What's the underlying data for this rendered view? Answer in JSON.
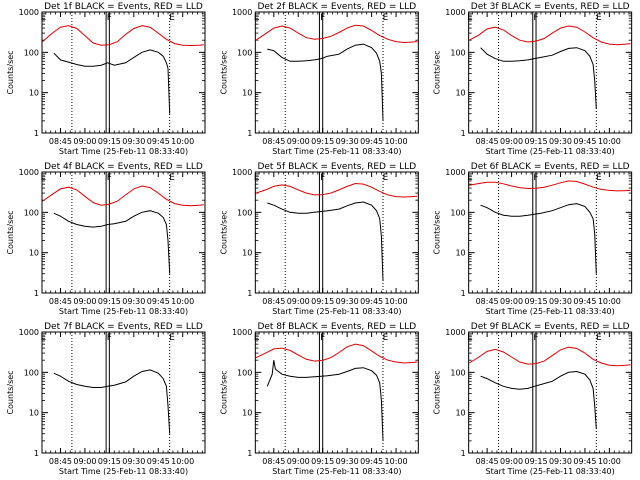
{
  "common": {
    "ylabel": "Counts/sec",
    "xlabel": "Start Time (25-Feb-11 08:33:40)",
    "x_ticks": [
      "08:45",
      "09:00",
      "09:15",
      "09:30",
      "09:45",
      "10:00"
    ],
    "x_tick_minutes": [
      45,
      60,
      75,
      90,
      105,
      120
    ],
    "x_range_minutes": [
      33.67,
      133.67
    ],
    "y_ticks": [
      "1",
      "10",
      "100",
      "1000"
    ],
    "y_tick_values": [
      1,
      10,
      100,
      1000
    ],
    "ylim": [
      1,
      1000
    ],
    "yscale": "log",
    "colors": {
      "events": "#000000",
      "lld": "#e00000",
      "axis": "#000000"
    }
  },
  "chart_data": [
    {
      "title": "Det 1f BLACK = Events, RED = LLD",
      "type": "line",
      "markers": [
        {
          "label": "E",
          "minute": 34.5
        },
        {
          "label": "F",
          "minute": 75
        },
        {
          "label": "E",
          "minute": 113.5
        }
      ],
      "dotted_lines": [
        52,
        112
      ],
      "double_lines": [
        73,
        75
      ],
      "series": [
        {
          "name": "Events",
          "color": "#000000",
          "x": [
            41,
            45,
            55,
            60,
            65,
            70,
            74,
            78,
            85,
            90,
            95,
            100,
            105,
            108,
            110,
            111,
            112
          ],
          "y": [
            95,
            65,
            50,
            45,
            45,
            48,
            55,
            48,
            55,
            75,
            100,
            115,
            100,
            80,
            55,
            40,
            3
          ]
        },
        {
          "name": "LLD",
          "color": "#e00000",
          "x": [
            34,
            40,
            45,
            50,
            55,
            60,
            65,
            70,
            75,
            80,
            85,
            90,
            95,
            100,
            105,
            110,
            115,
            120,
            125,
            130,
            133
          ],
          "y": [
            185,
            300,
            420,
            460,
            390,
            260,
            170,
            150,
            155,
            185,
            280,
            390,
            460,
            420,
            300,
            210,
            165,
            150,
            148,
            150,
            155
          ]
        }
      ]
    },
    {
      "title": "Det 2f BLACK = Events, RED = LLD",
      "type": "line",
      "markers": [
        {
          "label": "E",
          "minute": 34.5
        },
        {
          "label": "F",
          "minute": 75
        },
        {
          "label": "E",
          "minute": 113.5
        }
      ],
      "dotted_lines": [
        52,
        112
      ],
      "double_lines": [
        73,
        75
      ],
      "series": [
        {
          "name": "Events",
          "color": "#000000",
          "x": [
            41,
            45,
            50,
            55,
            60,
            65,
            70,
            74,
            78,
            85,
            90,
            95,
            100,
            105,
            108,
            110,
            111,
            112
          ],
          "y": [
            120,
            110,
            75,
            60,
            60,
            62,
            65,
            70,
            80,
            90,
            120,
            150,
            160,
            130,
            95,
            60,
            30,
            2
          ]
        },
        {
          "name": "LLD",
          "color": "#e00000",
          "x": [
            34,
            40,
            45,
            50,
            55,
            60,
            65,
            70,
            75,
            80,
            85,
            90,
            95,
            100,
            105,
            110,
            115,
            120,
            125,
            130,
            133
          ],
          "y": [
            200,
            290,
            400,
            450,
            400,
            300,
            230,
            210,
            220,
            250,
            310,
            400,
            470,
            450,
            350,
            260,
            210,
            185,
            175,
            180,
            185
          ]
        }
      ]
    },
    {
      "title": "Det 3f BLACK = Events, RED = LLD",
      "type": "line",
      "markers": [
        {
          "label": "E",
          "minute": 34.5
        },
        {
          "label": "F",
          "minute": 75
        },
        {
          "label": "E",
          "minute": 113.5
        }
      ],
      "dotted_lines": [
        52,
        112
      ],
      "double_lines": [
        73,
        75
      ],
      "series": [
        {
          "name": "Events",
          "color": "#000000",
          "x": [
            41,
            45,
            50,
            55,
            60,
            65,
            70,
            74,
            78,
            85,
            90,
            95,
            100,
            105,
            108,
            110,
            111,
            112
          ],
          "y": [
            130,
            90,
            70,
            60,
            60,
            62,
            65,
            70,
            75,
            85,
            105,
            125,
            130,
            110,
            80,
            50,
            20,
            4
          ]
        },
        {
          "name": "LLD",
          "color": "#e00000",
          "x": [
            34,
            40,
            45,
            50,
            55,
            60,
            65,
            70,
            75,
            80,
            85,
            90,
            95,
            100,
            105,
            110,
            115,
            120,
            125,
            130,
            133
          ],
          "y": [
            200,
            270,
            380,
            420,
            360,
            260,
            200,
            180,
            190,
            220,
            300,
            400,
            450,
            420,
            320,
            230,
            180,
            160,
            155,
            160,
            165
          ]
        }
      ]
    },
    {
      "title": "Det 4f BLACK = Events, RED = LLD",
      "type": "line",
      "markers": [
        {
          "label": "E",
          "minute": 34.5
        },
        {
          "label": "F",
          "minute": 75
        },
        {
          "label": "E",
          "minute": 113.5
        }
      ],
      "dotted_lines": [
        52,
        112
      ],
      "double_lines": [
        73,
        75
      ],
      "series": [
        {
          "name": "Events",
          "color": "#000000",
          "x": [
            41,
            45,
            50,
            55,
            60,
            65,
            70,
            74,
            78,
            85,
            90,
            95,
            100,
            105,
            108,
            110,
            111,
            112
          ],
          "y": [
            95,
            80,
            60,
            50,
            45,
            43,
            45,
            50,
            52,
            60,
            80,
            100,
            110,
            95,
            75,
            50,
            20,
            3
          ]
        },
        {
          "name": "LLD",
          "color": "#e00000",
          "x": [
            34,
            40,
            45,
            50,
            55,
            60,
            65,
            70,
            75,
            80,
            85,
            90,
            95,
            100,
            105,
            110,
            115,
            120,
            125,
            130,
            133
          ],
          "y": [
            190,
            280,
            380,
            420,
            360,
            250,
            175,
            150,
            160,
            190,
            270,
            380,
            450,
            410,
            300,
            210,
            165,
            150,
            145,
            150,
            155
          ]
        }
      ]
    },
    {
      "title": "Det 5f BLACK = Events, RED = LLD",
      "type": "line",
      "markers": [
        {
          "label": "E",
          "minute": 34.5
        },
        {
          "label": "F",
          "minute": 75
        },
        {
          "label": "E",
          "minute": 113.5
        }
      ],
      "dotted_lines": [
        52,
        112
      ],
      "double_lines": [
        73,
        75
      ],
      "series": [
        {
          "name": "Events",
          "color": "#000000",
          "x": [
            41,
            45,
            50,
            55,
            60,
            65,
            70,
            74,
            78,
            85,
            90,
            95,
            100,
            105,
            108,
            110,
            111,
            112
          ],
          "y": [
            170,
            150,
            120,
            100,
            95,
            95,
            100,
            105,
            110,
            120,
            145,
            170,
            180,
            150,
            110,
            70,
            25,
            2
          ]
        },
        {
          "name": "LLD",
          "color": "#e00000",
          "x": [
            34,
            40,
            45,
            50,
            55,
            60,
            65,
            70,
            75,
            80,
            85,
            90,
            95,
            100,
            105,
            110,
            115,
            120,
            125,
            130,
            133
          ],
          "y": [
            300,
            360,
            440,
            480,
            440,
            360,
            300,
            270,
            275,
            300,
            360,
            440,
            520,
            500,
            420,
            330,
            270,
            245,
            240,
            245,
            250
          ]
        }
      ]
    },
    {
      "title": "Det 6f BLACK = Events, RED = LLD",
      "type": "line",
      "markers": [
        {
          "label": "E",
          "minute": 34.5
        },
        {
          "label": "F",
          "minute": 75
        },
        {
          "label": "E",
          "minute": 113.5
        }
      ],
      "dotted_lines": [
        52,
        112
      ],
      "double_lines": [
        73,
        75
      ],
      "series": [
        {
          "name": "Events",
          "color": "#000000",
          "x": [
            41,
            45,
            50,
            55,
            60,
            65,
            70,
            74,
            78,
            85,
            90,
            95,
            100,
            105,
            108,
            110,
            111,
            112
          ],
          "y": [
            150,
            130,
            100,
            85,
            80,
            80,
            85,
            90,
            95,
            110,
            130,
            155,
            165,
            140,
            100,
            70,
            30,
            3
          ]
        },
        {
          "name": "LLD",
          "color": "#e00000",
          "x": [
            34,
            40,
            45,
            50,
            55,
            60,
            65,
            70,
            75,
            80,
            85,
            90,
            95,
            100,
            105,
            110,
            115,
            120,
            125,
            130,
            133
          ],
          "y": [
            470,
            520,
            560,
            560,
            510,
            450,
            410,
            390,
            395,
            420,
            470,
            540,
            600,
            580,
            500,
            420,
            370,
            350,
            340,
            345,
            350
          ]
        }
      ]
    },
    {
      "title": "Det 7f BLACK = Events, RED = LLD",
      "type": "line",
      "markers": [
        {
          "label": "E",
          "minute": 34.5
        },
        {
          "label": "F",
          "minute": 75
        },
        {
          "label": "E",
          "minute": 113.5
        }
      ],
      "dotted_lines": [
        52,
        112
      ],
      "double_lines": [
        73,
        75
      ],
      "series": [
        {
          "name": "Events",
          "color": "#000000",
          "x": [
            41,
            45,
            50,
            55,
            60,
            65,
            70,
            74,
            78,
            85,
            90,
            95,
            100,
            105,
            108,
            110,
            111,
            112
          ],
          "y": [
            95,
            80,
            60,
            50,
            45,
            42,
            42,
            45,
            48,
            58,
            80,
            105,
            115,
            95,
            70,
            45,
            15,
            3
          ]
        }
      ]
    },
    {
      "title": "Det 8f BLACK = Events, RED = LLD",
      "type": "line",
      "markers": [
        {
          "label": "E",
          "minute": 34.5
        },
        {
          "label": "F",
          "minute": 75
        },
        {
          "label": "E",
          "minute": 113.5
        }
      ],
      "dotted_lines": [
        52,
        112
      ],
      "double_lines": [
        73,
        75
      ],
      "series": [
        {
          "name": "Events",
          "color": "#000000",
          "x": [
            41,
            44,
            45,
            46,
            50,
            55,
            60,
            65,
            70,
            74,
            78,
            85,
            90,
            95,
            100,
            105,
            108,
            110,
            111,
            112
          ],
          "y": [
            45,
            90,
            200,
            120,
            90,
            80,
            75,
            75,
            78,
            80,
            82,
            90,
            105,
            125,
            130,
            110,
            85,
            55,
            20,
            2
          ]
        },
        {
          "name": "LLD",
          "color": "#e00000",
          "x": [
            34,
            40,
            45,
            50,
            55,
            60,
            65,
            70,
            75,
            80,
            85,
            90,
            95,
            100,
            105,
            110,
            115,
            120,
            125,
            130,
            133
          ],
          "y": [
            230,
            300,
            380,
            400,
            350,
            270,
            210,
            190,
            200,
            230,
            310,
            430,
            500,
            460,
            340,
            250,
            200,
            180,
            170,
            175,
            180
          ]
        }
      ]
    },
    {
      "title": "Det 9f BLACK = Events, RED = LLD",
      "type": "line",
      "markers": [
        {
          "label": "E",
          "minute": 34.5
        },
        {
          "label": "F",
          "minute": 75
        },
        {
          "label": "E",
          "minute": 113.5
        }
      ],
      "dotted_lines": [
        52,
        112
      ],
      "double_lines": [
        73,
        75
      ],
      "series": [
        {
          "name": "Events",
          "color": "#000000",
          "x": [
            41,
            45,
            50,
            55,
            60,
            65,
            70,
            74,
            78,
            85,
            90,
            95,
            100,
            105,
            108,
            110,
            111,
            112
          ],
          "y": [
            80,
            70,
            55,
            45,
            40,
            38,
            40,
            45,
            50,
            60,
            80,
            100,
            105,
            90,
            65,
            40,
            15,
            4
          ]
        },
        {
          "name": "LLD",
          "color": "#e00000",
          "x": [
            34,
            40,
            45,
            50,
            55,
            60,
            65,
            70,
            75,
            80,
            85,
            90,
            95,
            100,
            105,
            110,
            115,
            120,
            125,
            130,
            133
          ],
          "y": [
            170,
            240,
            330,
            370,
            320,
            240,
            180,
            160,
            165,
            190,
            260,
            360,
            420,
            390,
            300,
            210,
            170,
            150,
            145,
            150,
            155
          ]
        }
      ]
    }
  ]
}
